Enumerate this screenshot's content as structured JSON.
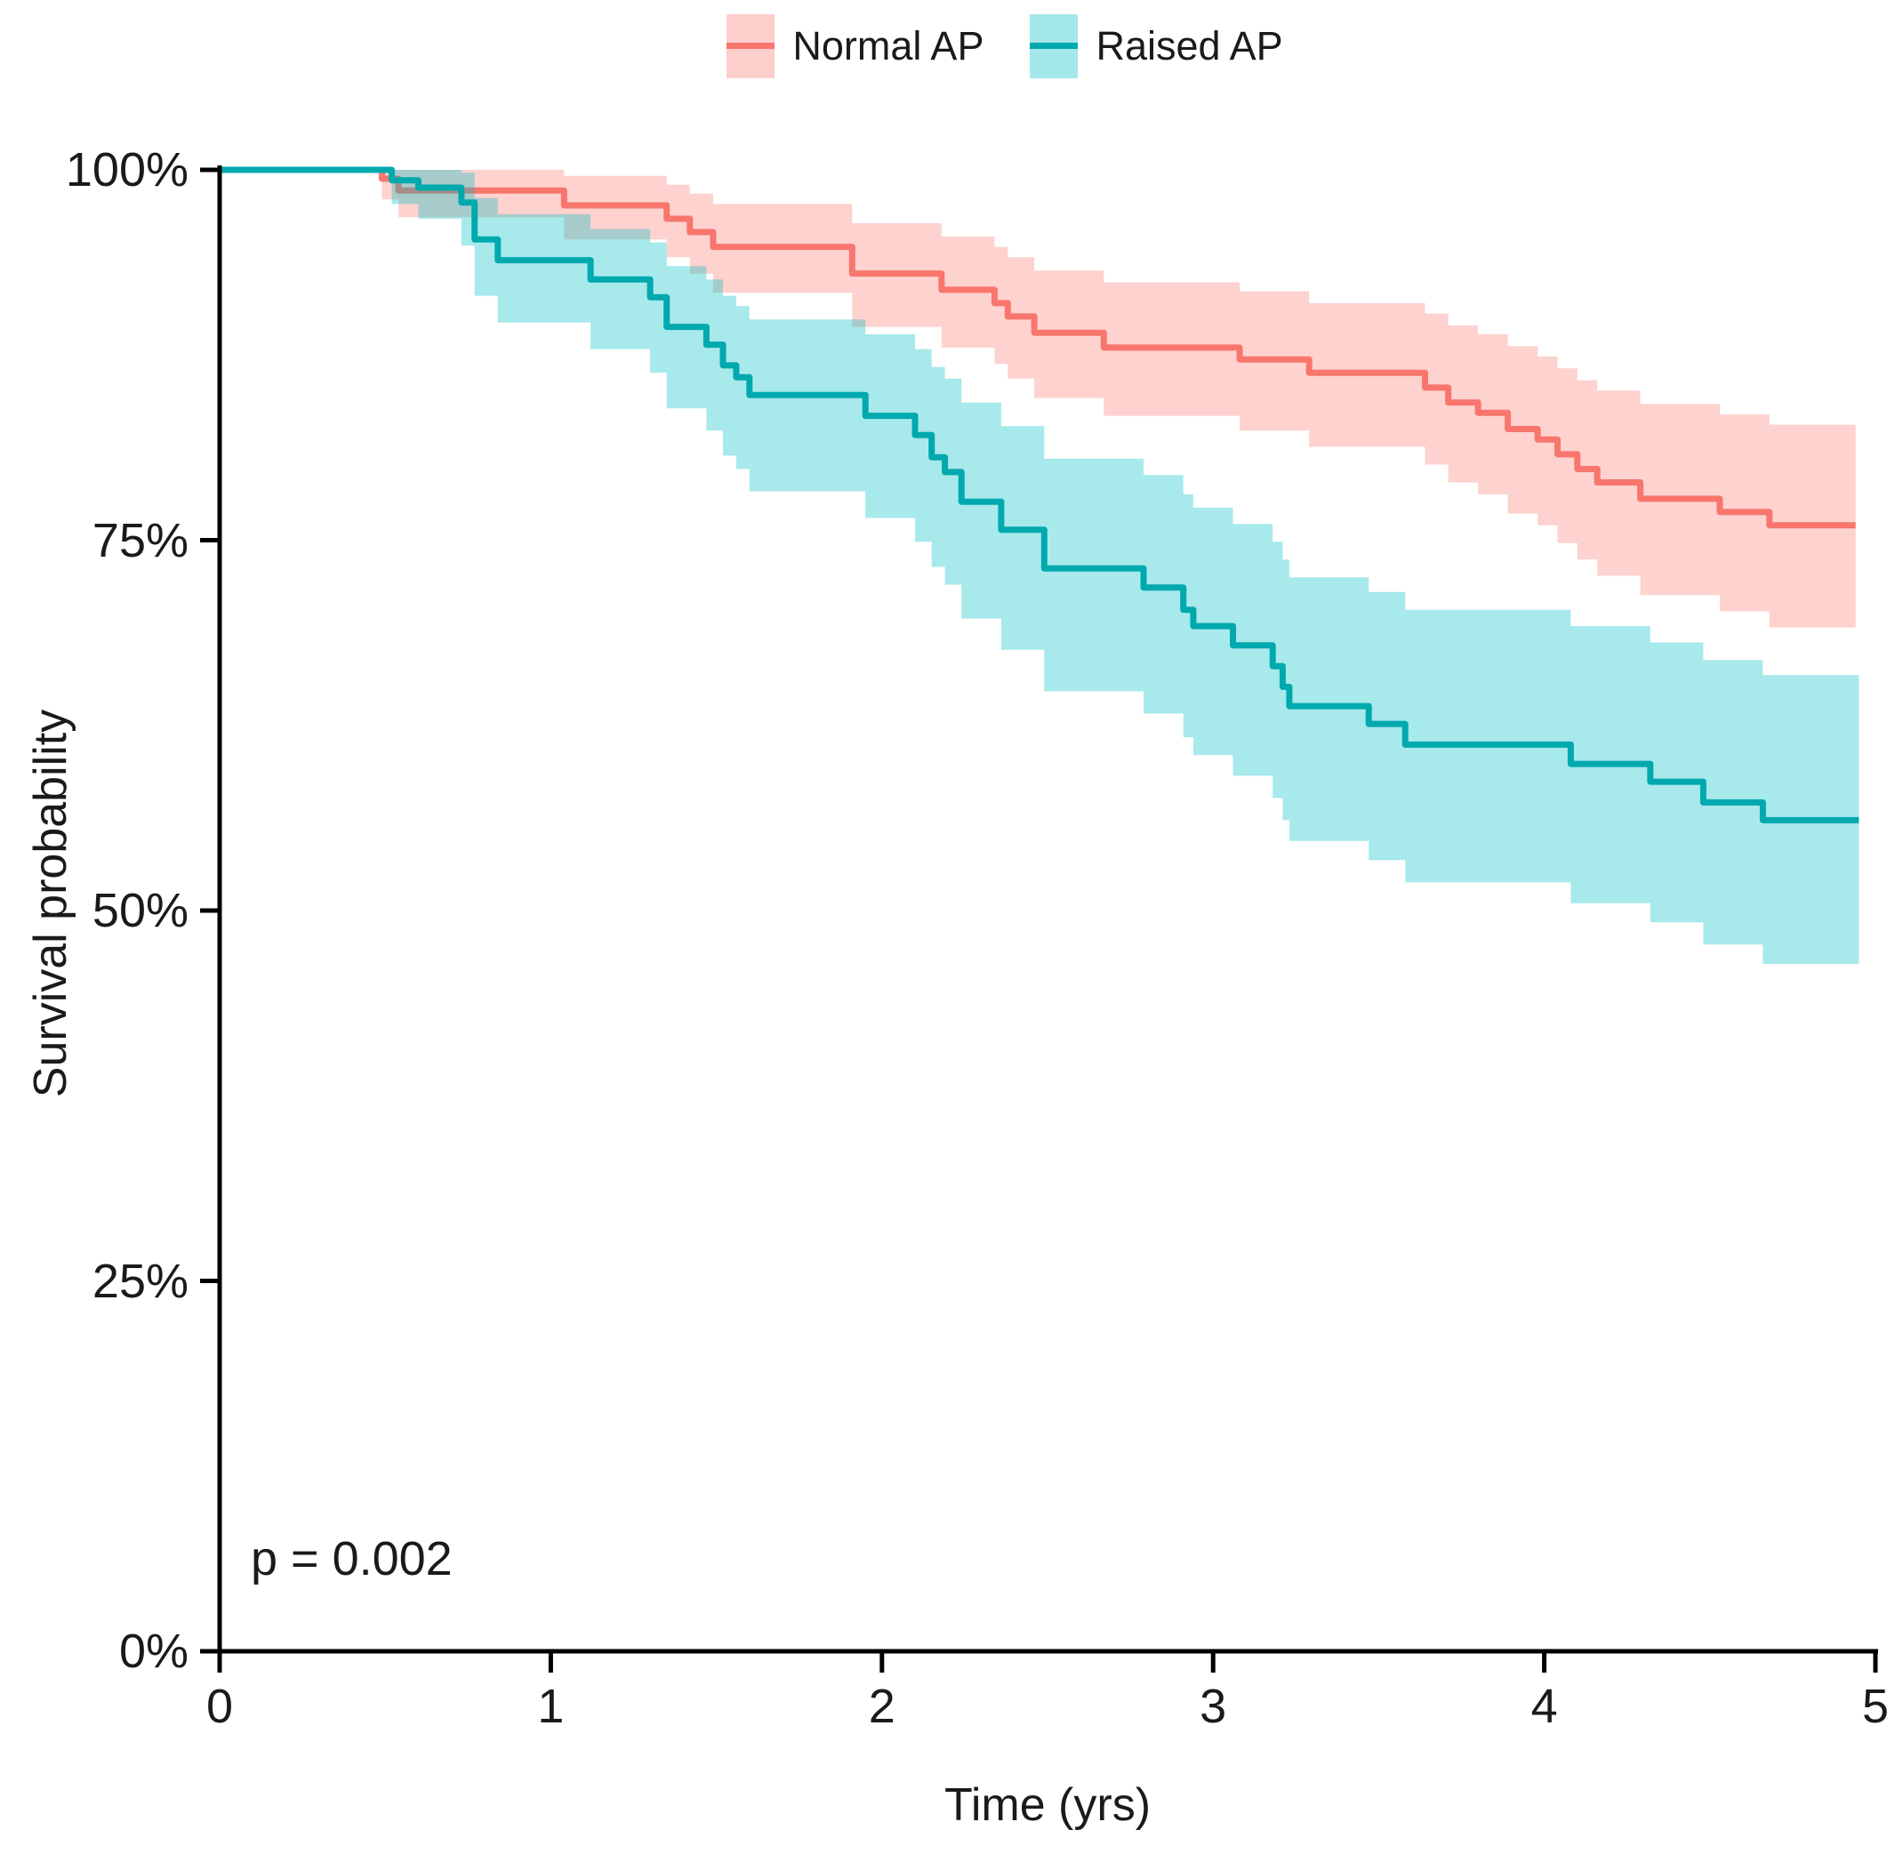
{
  "page": {
    "background": "#ffffff"
  },
  "legend": {
    "position": "top",
    "items": [
      {
        "label": "Normal AP"
      },
      {
        "label": "Raised AP"
      }
    ]
  },
  "annotation": {
    "p_value": "p = 0.002"
  },
  "axes": {
    "y_label": "Survival probability",
    "x_label": "Time (yrs)",
    "y_ticks": [
      "100%",
      "75%",
      "50%",
      "25%",
      "0%"
    ],
    "y_tick_values": [
      100,
      75,
      50,
      25,
      0
    ],
    "x_ticks": [
      "0",
      "1",
      "2",
      "3",
      "4",
      "5"
    ],
    "x_tick_values": [
      0,
      1,
      2,
      3,
      4,
      5
    ],
    "axis_color": "#000000"
  },
  "chart_data": {
    "type": "line",
    "subtype": "kaplan-meier-step-with-confidence-bands",
    "title": "",
    "xlabel": "Time (yrs)",
    "ylabel": "Survival probability",
    "xlim": [
      0,
      5
    ],
    "ylim": [
      0,
      100
    ],
    "grid": false,
    "legend_position": "top",
    "p_value_annotation": "p = 0.002",
    "note": "points are [time_yrs, survival_pct, ci_lower_pct, ci_upper_pct]; value holds until next time",
    "series": [
      {
        "name": "Normal AP",
        "line_color": "#F8766D",
        "band_color": "#F8766D",
        "band_opacity": 0.33,
        "end_t": 4.94,
        "points": [
          [
            0.0,
            100,
            100,
            100
          ],
          [
            0.49,
            99.4,
            98.0,
            100
          ],
          [
            0.54,
            98.6,
            96.8,
            100
          ],
          [
            1.04,
            97.6,
            95.3,
            99.6
          ],
          [
            1.35,
            96.7,
            94.1,
            99.0
          ],
          [
            1.42,
            95.8,
            93.0,
            98.4
          ],
          [
            1.49,
            94.8,
            91.7,
            97.7
          ],
          [
            1.91,
            93.0,
            89.4,
            96.4
          ],
          [
            2.18,
            91.9,
            88.0,
            95.5
          ],
          [
            2.34,
            91.0,
            86.9,
            94.8
          ],
          [
            2.38,
            90.1,
            85.9,
            94.1
          ],
          [
            2.46,
            89.0,
            84.6,
            93.2
          ],
          [
            2.67,
            88.0,
            83.4,
            92.4
          ],
          [
            3.08,
            87.2,
            82.4,
            91.8
          ],
          [
            3.29,
            86.3,
            81.3,
            91.0
          ],
          [
            3.64,
            85.3,
            80.1,
            90.3
          ],
          [
            3.71,
            84.3,
            78.9,
            89.5
          ],
          [
            3.8,
            83.6,
            78.1,
            88.9
          ],
          [
            3.89,
            82.5,
            76.8,
            88.1
          ],
          [
            3.98,
            81.8,
            76.0,
            87.4
          ],
          [
            4.04,
            80.8,
            74.8,
            86.6
          ],
          [
            4.1,
            79.8,
            73.7,
            85.8
          ],
          [
            4.16,
            78.9,
            72.6,
            85.1
          ],
          [
            4.29,
            77.8,
            71.3,
            84.2
          ],
          [
            4.53,
            76.9,
            70.2,
            83.5
          ],
          [
            4.68,
            76.0,
            69.1,
            82.8
          ]
        ]
      },
      {
        "name": "Raised AP",
        "line_color": "#00A9AE",
        "band_color": "#00BFC4",
        "band_opacity": 0.34,
        "end_t": 4.95,
        "points": [
          [
            0.0,
            100,
            100,
            100
          ],
          [
            0.52,
            99.3,
            97.7,
            100
          ],
          [
            0.6,
            98.8,
            96.7,
            100
          ],
          [
            0.73,
            97.8,
            94.9,
            99.8
          ],
          [
            0.77,
            95.3,
            91.5,
            98.1
          ],
          [
            0.84,
            93.9,
            89.7,
            97.0
          ],
          [
            1.12,
            92.6,
            87.9,
            96.0
          ],
          [
            1.3,
            91.4,
            86.3,
            95.1
          ],
          [
            1.35,
            89.4,
            83.9,
            93.5
          ],
          [
            1.47,
            88.2,
            82.4,
            92.6
          ],
          [
            1.52,
            86.8,
            80.7,
            91.5
          ],
          [
            1.56,
            86.0,
            79.8,
            90.8
          ],
          [
            1.6,
            84.8,
            78.3,
            89.9
          ],
          [
            1.95,
            83.4,
            76.5,
            88.9
          ],
          [
            2.1,
            82.1,
            74.9,
            87.9
          ],
          [
            2.15,
            80.6,
            73.2,
            86.7
          ],
          [
            2.19,
            79.6,
            72.0,
            85.9
          ],
          [
            2.24,
            77.6,
            69.7,
            84.3
          ],
          [
            2.36,
            75.7,
            67.6,
            82.7
          ],
          [
            2.49,
            73.1,
            64.8,
            80.5
          ],
          [
            2.79,
            71.8,
            63.3,
            79.4
          ],
          [
            2.91,
            70.3,
            61.7,
            78.1
          ],
          [
            2.94,
            69.2,
            60.5,
            77.2
          ],
          [
            3.06,
            67.9,
            59.1,
            76.1
          ],
          [
            3.18,
            66.5,
            57.6,
            74.9
          ],
          [
            3.21,
            65.1,
            56.1,
            73.7
          ],
          [
            3.23,
            63.8,
            54.7,
            72.5
          ],
          [
            3.47,
            62.6,
            53.4,
            71.5
          ],
          [
            3.58,
            61.2,
            51.9,
            70.3
          ],
          [
            4.08,
            59.9,
            50.5,
            69.2
          ],
          [
            4.32,
            58.7,
            49.2,
            68.1
          ],
          [
            4.48,
            57.3,
            47.7,
            66.9
          ],
          [
            4.66,
            56.1,
            46.4,
            65.9
          ]
        ]
      }
    ]
  }
}
